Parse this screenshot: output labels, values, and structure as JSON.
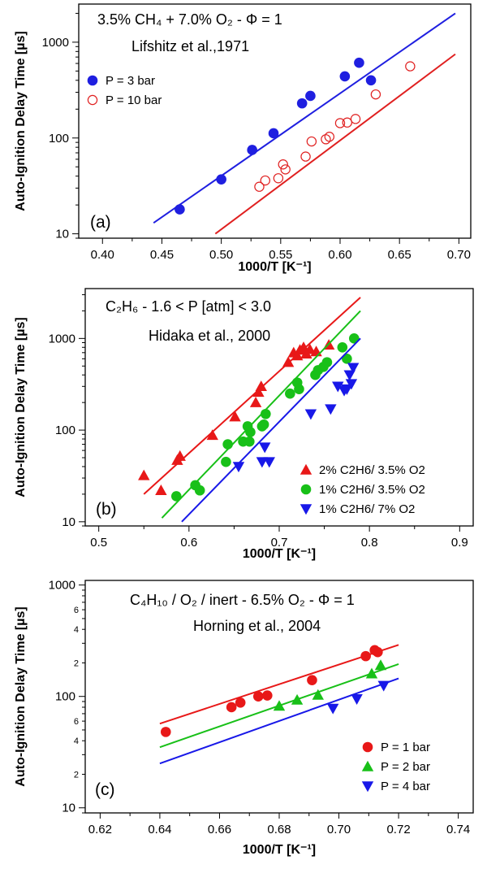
{
  "chart_data": [
    {
      "type": "scatter",
      "panel_label": "(a)",
      "annotation_line1": "3.5% CH₄ + 7.0% O₂ - Φ = 1",
      "annotation_line2": "Lifshitz et al.,1971",
      "xlabel": "1000/T [K⁻¹]",
      "ylabel": "Auto-Ignition Delay Time [µs]",
      "x_scale": "linear",
      "y_scale": "log",
      "xlim": [
        0.38,
        0.71
      ],
      "ylim": [
        9,
        2500
      ],
      "x_ticks": [
        0.4,
        0.45,
        0.5,
        0.55,
        0.6,
        0.65,
        0.7
      ],
      "x_tick_labels": [
        "0.40",
        "0.45",
        "0.50",
        "0.55",
        "0.60",
        "0.65",
        "0.70"
      ],
      "y_ticks": [
        10,
        100,
        1000
      ],
      "y_tick_labels": [
        "10",
        "100",
        "1000"
      ],
      "legend_placement": "left",
      "series": [
        {
          "name": "P =   3 bar",
          "color": "#1f1fe0",
          "marker": "circle-filled",
          "x": [
            0.465,
            0.5,
            0.526,
            0.544,
            0.568,
            0.575,
            0.604,
            0.616,
            0.626
          ],
          "y": [
            18,
            37,
            75,
            112,
            230,
            275,
            440,
            610,
            400
          ],
          "fit": [
            [
              0.443,
              13
            ],
            [
              0.697,
              2000
            ]
          ]
        },
        {
          "name": "P = 10 bar",
          "color": "#e02020",
          "marker": "circle-open",
          "x": [
            0.532,
            0.537,
            0.548,
            0.552,
            0.554,
            0.571,
            0.576,
            0.588,
            0.591,
            0.6,
            0.606,
            0.613,
            0.63,
            0.659
          ],
          "y": [
            31,
            36,
            38,
            53,
            47,
            64,
            92,
            97,
            103,
            143,
            145,
            158,
            285,
            560
          ],
          "fit": [
            [
              0.495,
              10
            ],
            [
              0.697,
              750
            ]
          ]
        }
      ]
    },
    {
      "type": "scatter",
      "panel_label": "(b)",
      "annotation_line1": "C₂H₆  - 1.6 < P [atm] < 3.0",
      "annotation_line2": "Hidaka et al., 2000",
      "xlabel": "1000/T [K⁻¹]",
      "ylabel": "Auto-Ignition Delay Time [µs]",
      "x_scale": "linear",
      "y_scale": "log",
      "xlim": [
        0.485,
        0.915
      ],
      "ylim": [
        9,
        3500
      ],
      "x_ticks": [
        0.5,
        0.6,
        0.7,
        0.8,
        0.9
      ],
      "x_tick_labels": [
        "0.5",
        "0.6",
        "0.7",
        "0.8",
        "0.9"
      ],
      "y_ticks": [
        10,
        100,
        1000
      ],
      "y_tick_labels": [
        "10",
        "100",
        "1000"
      ],
      "legend_placement": "bottom-right",
      "series": [
        {
          "name": "2% C2H6/ 3.5% O2",
          "color": "#e81818",
          "marker": "triangle-up",
          "x": [
            0.55,
            0.569,
            0.587,
            0.59,
            0.626,
            0.651,
            0.674,
            0.677,
            0.68,
            0.71,
            0.716,
            0.72,
            0.723,
            0.727,
            0.73,
            0.734,
            0.741,
            0.755
          ],
          "y": [
            32,
            22,
            47,
            52,
            88,
            140,
            200,
            260,
            300,
            550,
            700,
            650,
            750,
            800,
            680,
            760,
            720,
            850
          ],
          "fit": [
            [
              0.55,
              20
            ],
            [
              0.79,
              2800
            ]
          ]
        },
        {
          "name": "1% C2H6/ 3.5% O2",
          "color": "#18c018",
          "marker": "circle-filled",
          "x": [
            0.586,
            0.607,
            0.612,
            0.641,
            0.643,
            0.66,
            0.665,
            0.667,
            0.668,
            0.681,
            0.683,
            0.685,
            0.712,
            0.72,
            0.722,
            0.74,
            0.743,
            0.749,
            0.753,
            0.77,
            0.775,
            0.783
          ],
          "y": [
            19,
            25,
            22,
            45,
            70,
            75,
            110,
            75,
            95,
            110,
            115,
            150,
            250,
            330,
            280,
            400,
            450,
            490,
            550,
            800,
            600,
            1000
          ],
          "fit": [
            [
              0.57,
              11
            ],
            [
              0.79,
              2000
            ]
          ]
        },
        {
          "name": "1% C2H6/ 7% O2",
          "color": "#1818e8",
          "marker": "triangle-down",
          "x": [
            0.655,
            0.681,
            0.684,
            0.689,
            0.735,
            0.757,
            0.765,
            0.772,
            0.775,
            0.778,
            0.78,
            0.782
          ],
          "y": [
            40,
            45,
            65,
            45,
            150,
            170,
            300,
            270,
            280,
            400,
            320,
            480
          ],
          "fit": [
            [
              0.592,
              10
            ],
            [
              0.79,
              1000
            ]
          ]
        }
      ]
    },
    {
      "type": "scatter",
      "panel_label": "(c)",
      "annotation_line1": "C₄H₁₀ / O₂ / inert - 6.5% O₂ - Φ = 1",
      "annotation_line2": "Horning et al., 2004",
      "xlabel": "1000/T [K⁻¹]",
      "ylabel": "Auto-Ignition Delay Time [µs]",
      "x_scale": "linear",
      "y_scale": "log",
      "xlim": [
        0.615,
        0.745
      ],
      "ylim": [
        9,
        1100
      ],
      "x_ticks": [
        0.62,
        0.64,
        0.66,
        0.68,
        0.7,
        0.72,
        0.74
      ],
      "x_tick_labels": [
        "0.62",
        "0.64",
        "0.66",
        "0.68",
        "0.70",
        "0.72",
        "0.74"
      ],
      "y_ticks": [
        10,
        100,
        1000
      ],
      "y_tick_labels": [
        "10",
        "100",
        "1000"
      ],
      "y_minor_labels": [
        {
          "v": 20,
          "t": "2"
        },
        {
          "v": 40,
          "t": "4"
        },
        {
          "v": 60,
          "t": "6"
        },
        {
          "v": 200,
          "t": "2"
        },
        {
          "v": 400,
          "t": "4"
        },
        {
          "v": 600,
          "t": "6"
        }
      ],
      "legend_placement": "bottom-right",
      "series": [
        {
          "name": "P = 1 bar",
          "color": "#e81818",
          "marker": "circle-filled",
          "x": [
            0.642,
            0.664,
            0.667,
            0.673,
            0.676,
            0.691,
            0.709,
            0.712,
            0.713
          ],
          "y": [
            48,
            80,
            88,
            100,
            102,
            140,
            230,
            260,
            250
          ],
          "fit": [
            [
              0.64,
              57
            ],
            [
              0.72,
              290
            ]
          ]
        },
        {
          "name": "P = 2 bar",
          "color": "#18c018",
          "marker": "triangle-up",
          "x": [
            0.68,
            0.686,
            0.693,
            0.711,
            0.714
          ],
          "y": [
            82,
            93,
            103,
            160,
            190
          ],
          "fit": [
            [
              0.64,
              35
            ],
            [
              0.72,
              195
            ]
          ]
        },
        {
          "name": "P = 4 bar",
          "color": "#1818e8",
          "marker": "triangle-down",
          "x": [
            0.698,
            0.706,
            0.715
          ],
          "y": [
            78,
            95,
            125
          ],
          "fit": [
            [
              0.64,
              25
            ],
            [
              0.72,
              145
            ]
          ]
        }
      ]
    }
  ]
}
